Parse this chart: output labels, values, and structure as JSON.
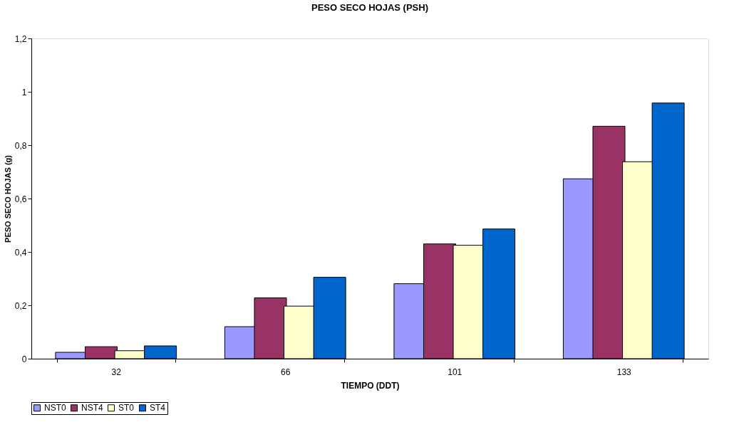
{
  "chart_data": {
    "type": "bar",
    "title": "PESO SECO HOJAS (PSH)",
    "xlabel": "TIEMPO (DDT)",
    "ylabel": "PESO SECO HOJAS (g)",
    "categories": [
      "32",
      "66",
      "101",
      "133"
    ],
    "series": [
      {
        "name": "NST0",
        "color": "#9999ff",
        "values": [
          0.024,
          0.12,
          0.281,
          0.674
        ]
      },
      {
        "name": "NST4",
        "color": "#993366",
        "values": [
          0.045,
          0.228,
          0.43,
          0.871
        ]
      },
      {
        "name": "ST0",
        "color": "#ffffcc",
        "values": [
          0.03,
          0.197,
          0.425,
          0.738
        ]
      },
      {
        "name": "ST4",
        "color": "#0066cc",
        "values": [
          0.048,
          0.305,
          0.486,
          0.958
        ]
      }
    ],
    "ylim": [
      0,
      1.2
    ],
    "yticks": [
      0,
      {
        "value": 0.2,
        "label": "0,2"
      },
      {
        "value": 0.4,
        "label": "0,4"
      },
      {
        "value": 0.6,
        "label": "0,6"
      },
      {
        "value": 0.8,
        "label": "0,8"
      },
      1,
      {
        "value": 1.2,
        "label": "1,2"
      }
    ],
    "grid": false,
    "legend": "bottom"
  }
}
